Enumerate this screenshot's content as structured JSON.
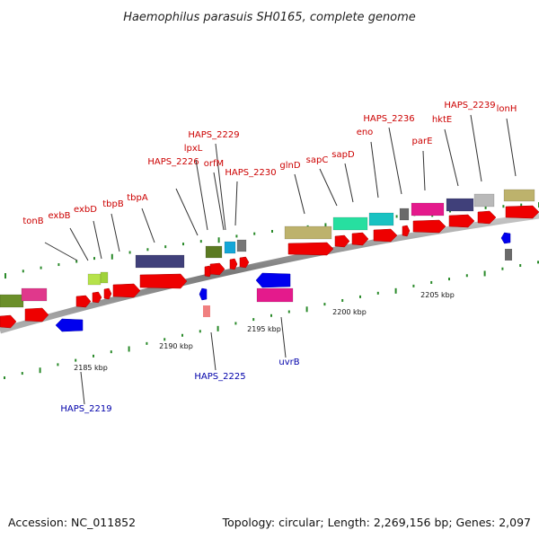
{
  "title": "Haemophilus parasuis SH0165, complete genome",
  "footer": {
    "accession": "Accession: NC_011852",
    "summary": "Topology: circular; Length: 2,269,156 bp; Genes: 2,097"
  },
  "colors": {
    "backbone": "#8c8c8c",
    "tick": "#2a8a2a",
    "forward_label": "#cc0000",
    "reverse_label": "#0000aa",
    "cds_forward": "#ee0000",
    "cds_reverse": "#0000ee"
  },
  "ticks": [
    {
      "label": "2185 kbp"
    },
    {
      "label": "2190 kbp"
    },
    {
      "label": "2195 kbp"
    },
    {
      "label": "2200 kbp"
    },
    {
      "label": "2205 kbp"
    }
  ],
  "forward_labels": [
    {
      "text": "tonB"
    },
    {
      "text": "exbB"
    },
    {
      "text": "exbD"
    },
    {
      "text": "tbpB"
    },
    {
      "text": "tbpA"
    },
    {
      "text": "HAPS_2226"
    },
    {
      "text": "lpxL"
    },
    {
      "text": "HAPS_2229"
    },
    {
      "text": "orfM"
    },
    {
      "text": "HAPS_2230"
    },
    {
      "text": "glnD"
    },
    {
      "text": "sapC"
    },
    {
      "text": "sapD"
    },
    {
      "text": "eno"
    },
    {
      "text": "HAPS_2236"
    },
    {
      "text": "parE"
    },
    {
      "text": "hktE"
    },
    {
      "text": "HAPS_2239"
    },
    {
      "text": "lonH"
    }
  ],
  "reverse_labels": [
    {
      "text": "HAPS_2219"
    },
    {
      "text": "HAPS_2225"
    },
    {
      "text": "uvrB"
    }
  ]
}
